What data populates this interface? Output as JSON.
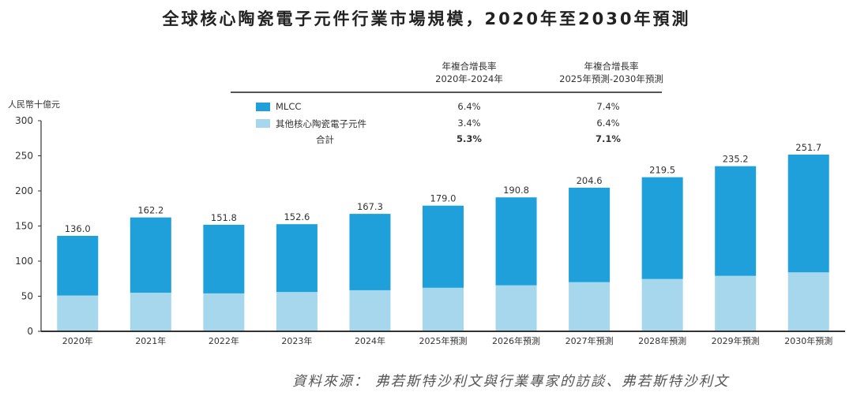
{
  "colors": {
    "mlcc": "#1fa0db",
    "other": "#a6d7ec",
    "axis": "#333333"
  },
  "chart_data": {
    "type": "bar",
    "stacked": true,
    "title": "全球核心陶瓷電子元件行業市場規模，2020年至2030年預測",
    "ylabel": "人民幣十億元",
    "xlabel": "",
    "ylim": [
      0,
      300
    ],
    "yticks": [
      0,
      50,
      100,
      150,
      200,
      250,
      300
    ],
    "grid": false,
    "categories": [
      "2020年",
      "2021年",
      "2022年",
      "2023年",
      "2024年",
      "2025年預測",
      "2026年預測",
      "2027年預測",
      "2028年預測",
      "2029年預測",
      "2030年預測"
    ],
    "totals": [
      136.0,
      162.2,
      151.8,
      152.6,
      167.3,
      179.0,
      190.8,
      204.6,
      219.5,
      235.2,
      251.7
    ],
    "total_labels": [
      "136.0",
      "162.2",
      "151.8",
      "152.6",
      "167.3",
      "179.0",
      "190.8",
      "204.6",
      "219.5",
      "235.2",
      "251.7"
    ],
    "series": [
      {
        "name": "其他核心陶瓷電子元件",
        "values": [
          51.0,
          55.0,
          54.0,
          56.0,
          58.5,
          62.0,
          65.5,
          70.0,
          74.5,
          79.0,
          84.0
        ]
      },
      {
        "name": "MLCC",
        "values": [
          85.0,
          107.2,
          97.8,
          96.6,
          108.8,
          117.0,
          125.3,
          134.6,
          145.0,
          156.2,
          167.7
        ]
      }
    ],
    "legend_placement": "top-center",
    "cagr_table": {
      "headers": [
        {
          "line1": "年複合增長率",
          "line2": "2020年-2024年"
        },
        {
          "line1": "年複合增長率",
          "line2": "2025年預測-2030年預測"
        }
      ],
      "rows": [
        {
          "name": "MLCC",
          "v1": "6.4%",
          "v2": "7.4%"
        },
        {
          "name": "其他核心陶瓷電子元件",
          "v1": "3.4%",
          "v2": "6.4%"
        },
        {
          "name": "合計",
          "v1": "5.3%",
          "v2": "7.1%"
        }
      ]
    }
  },
  "source": "資料來源：  弗若斯特沙利文與行業專家的訪談、弗若斯特沙利文"
}
